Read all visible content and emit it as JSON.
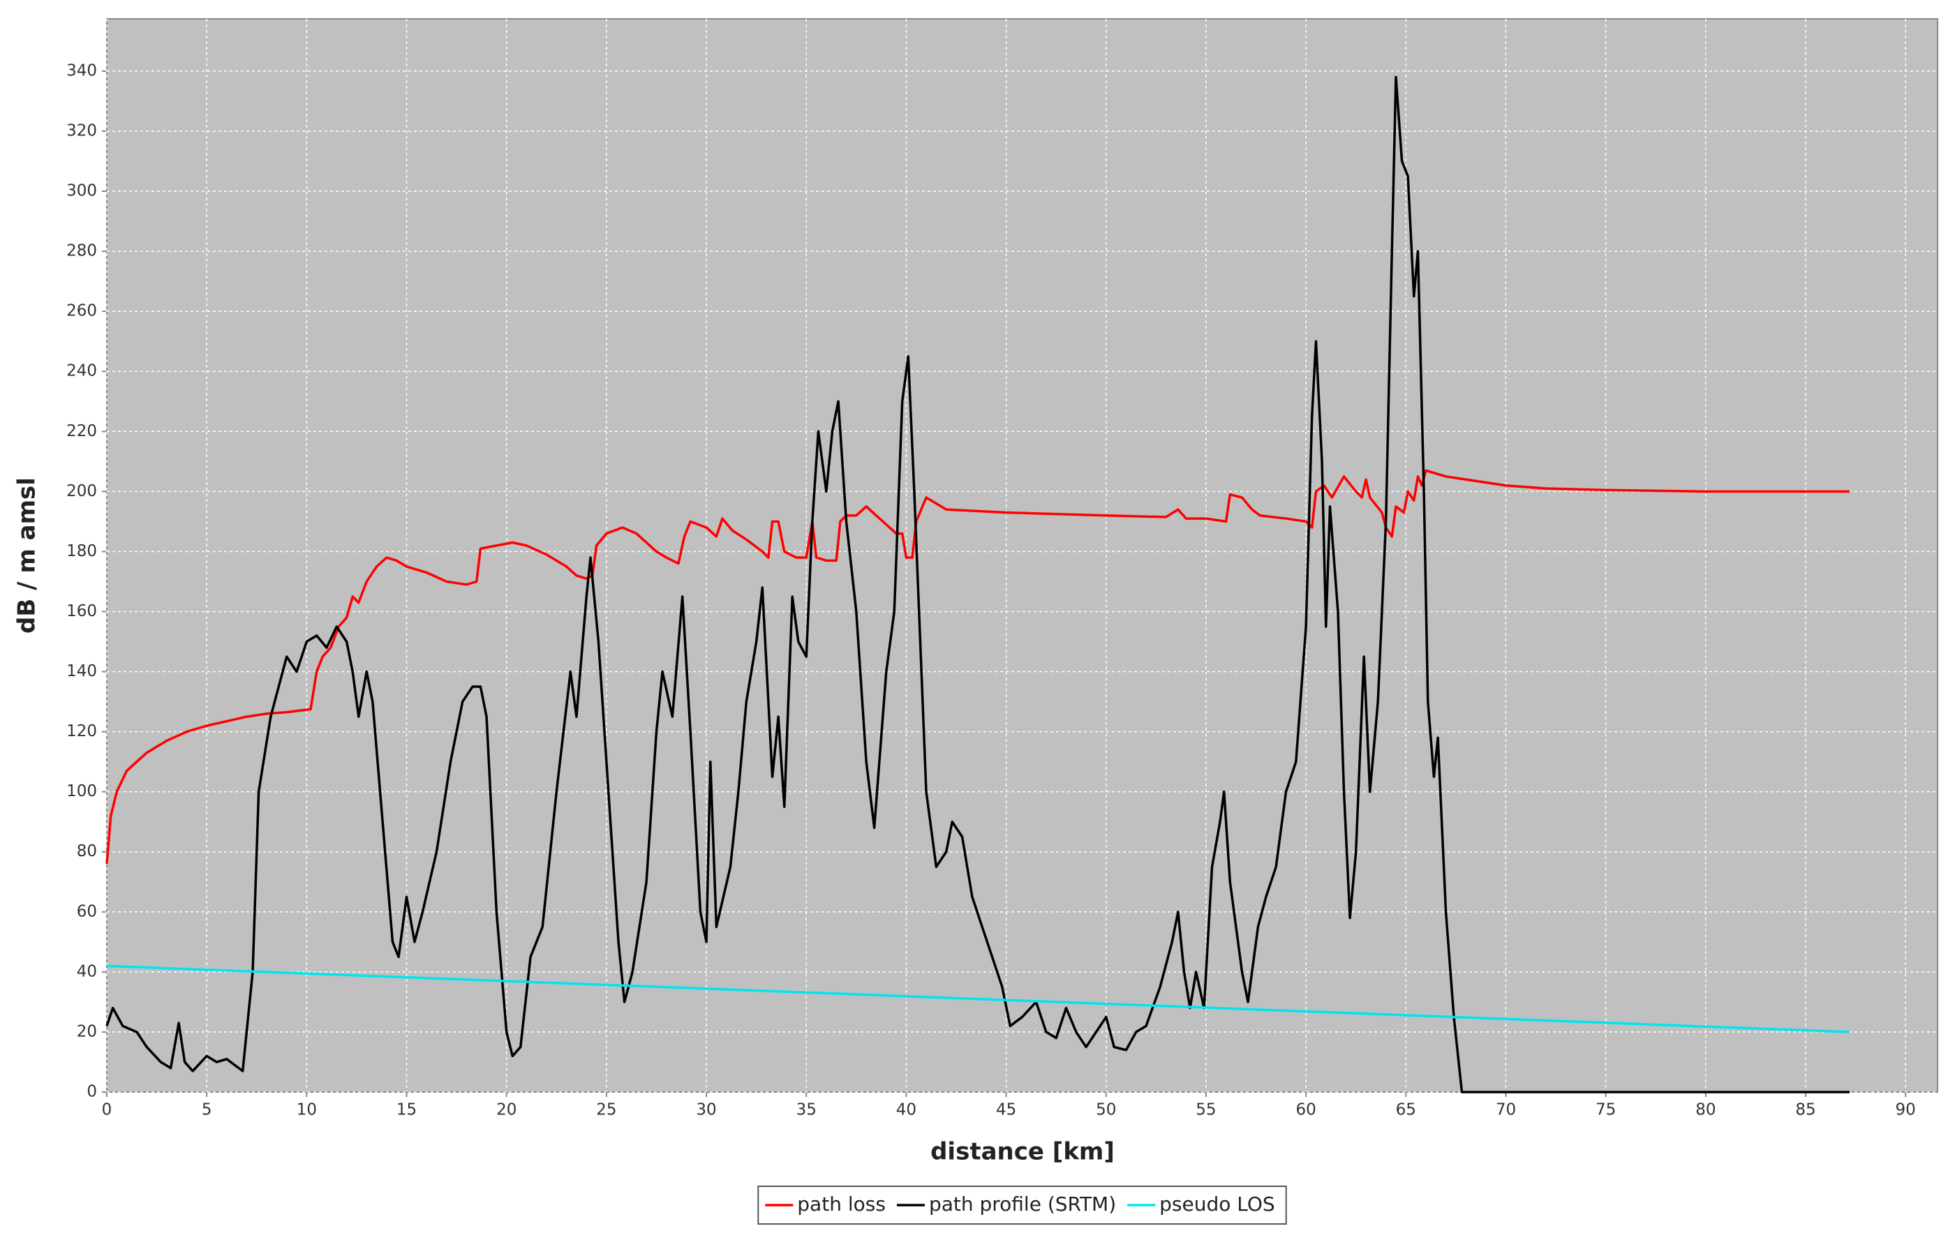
{
  "chart_data": {
    "type": "line",
    "xlabel": "distance [km]",
    "ylabel": "dB / m amsl",
    "xlim": [
      0,
      91.6
    ],
    "ylim": [
      0,
      357.4
    ],
    "xticks": [
      0,
      5,
      10,
      15,
      20,
      25,
      30,
      35,
      40,
      45,
      50,
      55,
      60,
      65,
      70,
      75,
      80,
      85,
      90
    ],
    "yticks": [
      0,
      20,
      40,
      60,
      80,
      100,
      120,
      140,
      160,
      180,
      200,
      220,
      240,
      260,
      280,
      300,
      320,
      340
    ],
    "grid": true,
    "legend": "bottom",
    "series": [
      {
        "name": "path loss",
        "color": "#ff0000",
        "x": [
          0,
          0.2,
          0.5,
          1,
          2,
          3,
          4,
          5,
          6,
          7,
          8,
          9,
          10.2,
          10.5,
          10.8,
          11.2,
          11.6,
          12,
          12.3,
          12.6,
          13,
          13.5,
          14,
          14.5,
          15,
          16,
          17,
          18,
          18.5,
          18.7,
          19.5,
          20.3,
          21,
          22,
          23,
          23.5,
          24,
          24.3,
          24.5,
          25,
          25.8,
          26.5,
          27.5,
          28,
          28.6,
          28.9,
          29.2,
          30,
          30.5,
          30.8,
          31.3,
          32,
          32.8,
          33.1,
          33.3,
          33.6,
          33.9,
          34.5,
          35,
          35.3,
          35.5,
          36,
          36.5,
          36.7,
          37,
          37.5,
          38,
          38.5,
          39,
          39.5,
          39.8,
          40,
          40.3,
          40.5,
          41,
          41.5,
          42,
          45,
          50,
          53,
          53.6,
          54,
          55,
          56,
          56.2,
          56.8,
          57.3,
          57.7,
          59,
          60,
          60.3,
          60.5,
          60.9,
          61.3,
          61.9,
          62.5,
          62.8,
          63,
          63.2,
          63.8,
          64,
          64.3,
          64.5,
          64.9,
          65.1,
          65.4,
          65.6,
          65.8,
          66,
          66.5,
          67,
          68,
          70,
          72,
          75,
          80,
          85,
          87.2
        ],
        "values": [
          76,
          92,
          100,
          107,
          113,
          117,
          120,
          122,
          123.5,
          125,
          126,
          126.5,
          127.5,
          140,
          145,
          148,
          155,
          158,
          165,
          163,
          170,
          175,
          178,
          177,
          175,
          173,
          170,
          169,
          170,
          181,
          182,
          183,
          182,
          179,
          175,
          172,
          171,
          172,
          182,
          186,
          188,
          186,
          180,
          178,
          176,
          185,
          190,
          188,
          185,
          191,
          187,
          184,
          180,
          178,
          190,
          190,
          180,
          178,
          178,
          190,
          178,
          177,
          177,
          190,
          192,
          192,
          195,
          192,
          189,
          186,
          186,
          178,
          178,
          190,
          198,
          196,
          194,
          193,
          192,
          191.5,
          194,
          191,
          191,
          190,
          199,
          198,
          194,
          192,
          191,
          190,
          188,
          200,
          202,
          198,
          205,
          200,
          198,
          204,
          198,
          193,
          188,
          185,
          195,
          193,
          200,
          197,
          205,
          202,
          207,
          206,
          205,
          204,
          202,
          201,
          200.5,
          200,
          200,
          200
        ]
      },
      {
        "name": "path profile (SRTM)",
        "color": "#000000",
        "x": [
          0,
          0.3,
          0.8,
          1.5,
          2,
          2.7,
          3.2,
          3.6,
          3.9,
          4.3,
          5,
          5.5,
          6,
          6.8,
          7.3,
          7.6,
          8.2,
          9,
          9.5,
          10,
          10.5,
          11,
          11.5,
          12,
          12.3,
          12.6,
          13,
          13.3,
          13.8,
          14.3,
          14.6,
          15,
          15.4,
          15.8,
          16.5,
          17.2,
          17.8,
          18.3,
          18.7,
          19,
          19.5,
          20,
          20.3,
          20.7,
          21.2,
          21.8,
          22.5,
          23.2,
          23.5,
          24,
          24.2,
          24.6,
          25.1,
          25.6,
          25.9,
          26.3,
          27,
          27.5,
          27.8,
          28.3,
          28.8,
          29.2,
          29.7,
          30,
          30.2,
          30.5,
          31.2,
          31.6,
          32,
          32.5,
          32.8,
          33.3,
          33.6,
          33.9,
          34.3,
          34.6,
          35,
          35.3,
          35.6,
          36,
          36.3,
          36.6,
          37,
          37.5,
          38,
          38.4,
          39,
          39.4,
          39.8,
          40.1,
          40.4,
          41,
          41.5,
          42,
          42.3,
          42.8,
          43.3,
          43.8,
          44.3,
          44.8,
          45.2,
          45.8,
          46.5,
          47,
          47.5,
          48,
          48.5,
          49,
          49.5,
          50,
          50.4,
          51,
          51.5,
          52,
          52.7,
          53.3,
          53.6,
          53.9,
          54.2,
          54.5,
          54.9,
          55.3,
          55.7,
          55.9,
          56.2,
          56.8,
          57.1,
          57.6,
          58,
          58.5,
          59,
          59.5,
          60,
          60.3,
          60.5,
          60.8,
          61,
          61.2,
          61.6,
          61.9,
          62.2,
          62.5,
          62.9,
          63.2,
          63.6,
          64,
          64.3,
          64.5,
          64.8,
          65.1,
          65.4,
          65.6,
          65.9,
          66.1,
          66.4,
          66.6,
          67,
          67.4,
          67.8,
          87.2
        ],
        "values": [
          22,
          28,
          22,
          20,
          15,
          10,
          8,
          23,
          10,
          7,
          12,
          10,
          11,
          7,
          40,
          100,
          125,
          145,
          140,
          150,
          152,
          148,
          155,
          150,
          140,
          125,
          140,
          130,
          90,
          50,
          45,
          65,
          50,
          60,
          80,
          110,
          130,
          135,
          135,
          125,
          60,
          20,
          12,
          15,
          45,
          55,
          100,
          140,
          125,
          165,
          178,
          150,
          100,
          50,
          30,
          40,
          70,
          120,
          140,
          125,
          165,
          120,
          60,
          50,
          110,
          55,
          75,
          100,
          130,
          150,
          168,
          105,
          125,
          95,
          165,
          150,
          145,
          190,
          220,
          200,
          220,
          230,
          190,
          160,
          110,
          88,
          140,
          160,
          230,
          245,
          200,
          100,
          75,
          80,
          90,
          85,
          65,
          55,
          45,
          35,
          22,
          25,
          30,
          20,
          18,
          28,
          20,
          15,
          20,
          25,
          15,
          14,
          20,
          22,
          35,
          50,
          60,
          40,
          28,
          40,
          28,
          75,
          90,
          100,
          70,
          40,
          30,
          55,
          65,
          75,
          100,
          110,
          155,
          225,
          250,
          210,
          155,
          195,
          160,
          100,
          58,
          80,
          145,
          100,
          130,
          190,
          280,
          338,
          310,
          305,
          265,
          280,
          200,
          130,
          105,
          118,
          60,
          25,
          0,
          0
        ]
      },
      {
        "name": "pseudo LOS",
        "color": "#00e5ee",
        "x": [
          0,
          43.6,
          87.2
        ],
        "values": [
          42,
          31,
          20
        ]
      }
    ]
  }
}
